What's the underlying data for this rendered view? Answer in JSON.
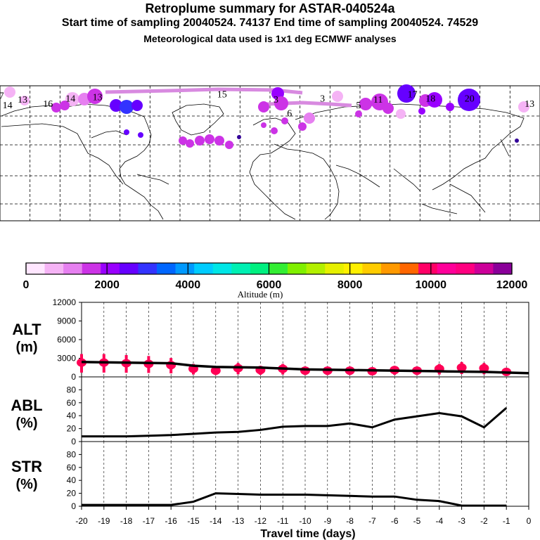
{
  "title": "Retroplume summary for ASTAR-040524a",
  "subtitle": "Start time of sampling 20040524. 74137     End time of sampling 20040524. 74529",
  "met_note": "Meteorological data used is 1x1 deg ECMWF analyses",
  "colorbar": {
    "label": "Altitude (m)",
    "ticks": [
      "0",
      "2000",
      "4000",
      "6000",
      "8000",
      "10000",
      "12000"
    ],
    "colors": [
      "#ffe6ff",
      "#f5b3f5",
      "#e680f0",
      "#cc33e6",
      "#9900ff",
      "#6600ff",
      "#3333ff",
      "#0066ff",
      "#0099ff",
      "#00ccff",
      "#00e6e6",
      "#00f0b3",
      "#00f080",
      "#33ee33",
      "#80f000",
      "#b3f000",
      "#e6f000",
      "#fff000",
      "#ffcc00",
      "#ff9900",
      "#ff6600",
      "#ff0066",
      "#ff0099",
      "#ff0080",
      "#cc0099",
      "#8a0099"
    ]
  },
  "map_labels": [
    {
      "text": "7",
      "lon": -179,
      "lat": 83
    },
    {
      "text": "13",
      "lon": -165,
      "lat": 80
    },
    {
      "text": "14",
      "lon": -175,
      "lat": 76
    },
    {
      "text": "16",
      "lon": -148,
      "lat": 77
    },
    {
      "text": "14",
      "lon": -133,
      "lat": 81
    },
    {
      "text": "13",
      "lon": -115,
      "lat": 82
    },
    {
      "text": "15",
      "lon": -32,
      "lat": 84
    },
    {
      "text": "3",
      "lon": 4,
      "lat": 80
    },
    {
      "text": "3",
      "lon": 35,
      "lat": 81
    },
    {
      "text": "6",
      "lon": 13,
      "lat": 70
    },
    {
      "text": "5",
      "lon": 59,
      "lat": 76
    },
    {
      "text": "11",
      "lon": 72,
      "lat": 80
    },
    {
      "text": "17",
      "lon": 95,
      "lat": 84
    },
    {
      "text": "18",
      "lon": 107,
      "lat": 81
    },
    {
      "text": "20",
      "lon": 133,
      "lat": 81
    },
    {
      "text": "13",
      "lon": 173,
      "lat": 77
    }
  ],
  "chart_data": [
    {
      "type": "scatter+line",
      "panel": "ALT",
      "ylabel": "ALT (m)",
      "ylim": [
        0,
        12000
      ],
      "yticks": [
        "12000",
        "9000",
        "6000",
        "3000",
        "0"
      ],
      "x": [
        -20,
        -19,
        -18,
        -17,
        -16,
        -15,
        -14,
        -13,
        -12,
        -11,
        -10,
        -9,
        -8,
        -7,
        -6,
        -5,
        -4,
        -3,
        -2,
        -1
      ],
      "points": [
        2300,
        2300,
        2200,
        2100,
        1900,
        1300,
        1000,
        1400,
        1100,
        1300,
        1000,
        1000,
        1000,
        900,
        1100,
        1000,
        1300,
        1500,
        1400,
        800
      ],
      "line_x": [
        -20,
        -16,
        -15,
        -14,
        -12,
        -10,
        -8,
        -6,
        -4,
        -2,
        -1,
        0
      ],
      "line_y": [
        2400,
        2200,
        1800,
        1600,
        1500,
        1200,
        1100,
        1000,
        900,
        800,
        700,
        600
      ]
    },
    {
      "type": "line",
      "panel": "ABL",
      "ylabel": "ABL (%)",
      "ylim": [
        0,
        100
      ],
      "yticks": [
        "80",
        "60",
        "40",
        "20",
        "0"
      ],
      "x": [
        -20,
        -19,
        -18,
        -17,
        -16,
        -15,
        -14,
        -13,
        -12,
        -11,
        -10,
        -9,
        -8,
        -7,
        -6,
        -5,
        -4,
        -3,
        -2,
        -1
      ],
      "values": [
        8,
        8,
        8,
        9,
        10,
        12,
        14,
        15,
        18,
        23,
        24,
        24,
        28,
        22,
        34,
        39,
        44,
        39,
        22,
        52
      ]
    },
    {
      "type": "line",
      "panel": "STR",
      "ylabel": "STR (%)",
      "ylim": [
        0,
        100
      ],
      "yticks": [
        "80",
        "60",
        "40",
        "20",
        "0"
      ],
      "x": [
        -20,
        -19,
        -18,
        -17,
        -16,
        -15,
        -14,
        -13,
        -12,
        -11,
        -10,
        -9,
        -8,
        -7,
        -6,
        -5,
        -4,
        -3,
        -2,
        -1
      ],
      "values": [
        2,
        2,
        2,
        2,
        2,
        7,
        20,
        19,
        18,
        18,
        18,
        17,
        16,
        15,
        15,
        10,
        8,
        1,
        1,
        1
      ]
    }
  ],
  "xaxis": {
    "label": "Travel time (days)",
    "ticks": [
      "-20",
      "-19",
      "-18",
      "-17",
      "-16",
      "-15",
      "-14",
      "-13",
      "-12",
      "-11",
      "-10",
      "-9",
      "-8",
      "-7",
      "-6",
      "-5",
      "-4",
      "-3",
      "-2",
      "-1",
      "0"
    ]
  },
  "panel_labels": {
    "alt": [
      "ALT",
      "(m)"
    ],
    "abl": [
      "ABL",
      "(%)"
    ],
    "str": [
      "STR",
      "(%)"
    ]
  }
}
